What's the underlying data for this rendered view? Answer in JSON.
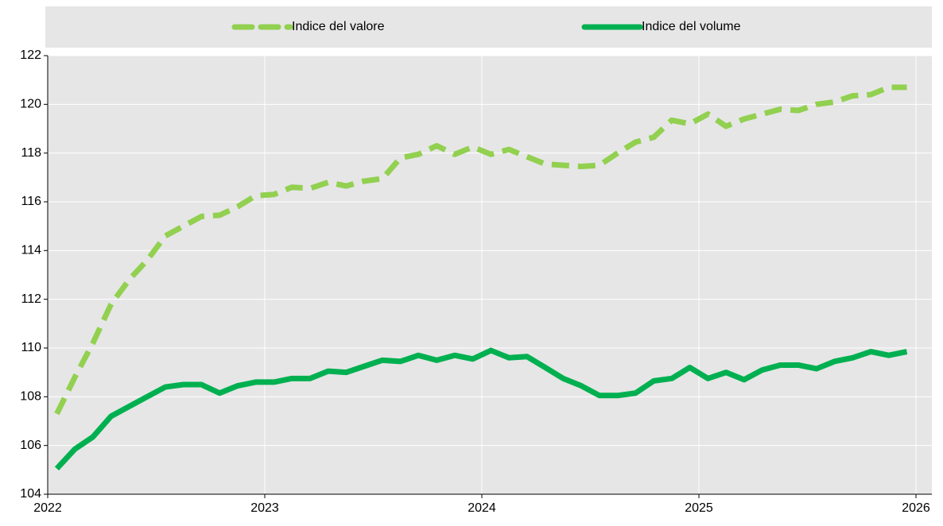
{
  "chart_data": {
    "type": "line",
    "x": [
      2022.042,
      2022.125,
      2022.208,
      2022.292,
      2022.375,
      2022.458,
      2022.542,
      2022.625,
      2022.708,
      2022.792,
      2022.875,
      2022.958,
      2023.042,
      2023.125,
      2023.208,
      2023.292,
      2023.375,
      2023.458,
      2023.542,
      2023.625,
      2023.708,
      2023.792,
      2023.875,
      2023.958,
      2024.042,
      2024.125,
      2024.208,
      2024.292,
      2024.375,
      2024.458,
      2024.542,
      2024.625,
      2024.708,
      2024.792,
      2024.875,
      2024.958,
      2025.042,
      2025.125,
      2025.208,
      2025.292,
      2025.375,
      2025.458,
      2025.542,
      2025.625,
      2025.708,
      2025.792,
      2025.875,
      2025.958
    ],
    "series": [
      {
        "name": "Indice del valore",
        "color": "#92d050",
        "dash": true,
        "values": [
          107.3,
          108.8,
          110.2,
          111.8,
          112.8,
          113.6,
          114.6,
          115.0,
          115.4,
          115.45,
          115.8,
          116.25,
          116.3,
          116.6,
          116.55,
          116.8,
          116.65,
          116.85,
          116.95,
          117.8,
          117.95,
          118.3,
          117.95,
          118.25,
          117.95,
          118.15,
          117.85,
          117.55,
          117.5,
          117.45,
          117.5,
          118.0,
          118.45,
          118.65,
          119.35,
          119.2,
          119.6,
          119.1,
          119.4,
          119.6,
          119.8,
          119.75,
          120.0,
          120.1,
          120.35,
          120.4,
          120.7,
          120.7
        ]
      },
      {
        "name": "Indice del volume",
        "color": "#00b050",
        "dash": false,
        "values": [
          105.05,
          105.85,
          106.35,
          107.2,
          107.6,
          108.0,
          108.4,
          108.5,
          108.5,
          108.15,
          108.45,
          108.6,
          108.6,
          108.75,
          108.75,
          109.05,
          109.0,
          109.25,
          109.5,
          109.45,
          109.7,
          109.5,
          109.7,
          109.55,
          109.9,
          109.6,
          109.65,
          109.2,
          108.75,
          108.45,
          108.05,
          108.05,
          108.15,
          108.65,
          108.75,
          109.2,
          108.75,
          109.0,
          108.7,
          109.1,
          109.3,
          109.3,
          109.15,
          109.45,
          109.6,
          109.85,
          109.7,
          109.85
        ]
      }
    ],
    "xlim": [
      2022,
      2026
    ],
    "xticks": [
      2022,
      2023,
      2024,
      2025,
      2026
    ],
    "ylim": [
      104,
      122
    ],
    "yticks": [
      104,
      106,
      108,
      110,
      112,
      114,
      116,
      118,
      120,
      122
    ],
    "grid": true,
    "legend": "top"
  }
}
